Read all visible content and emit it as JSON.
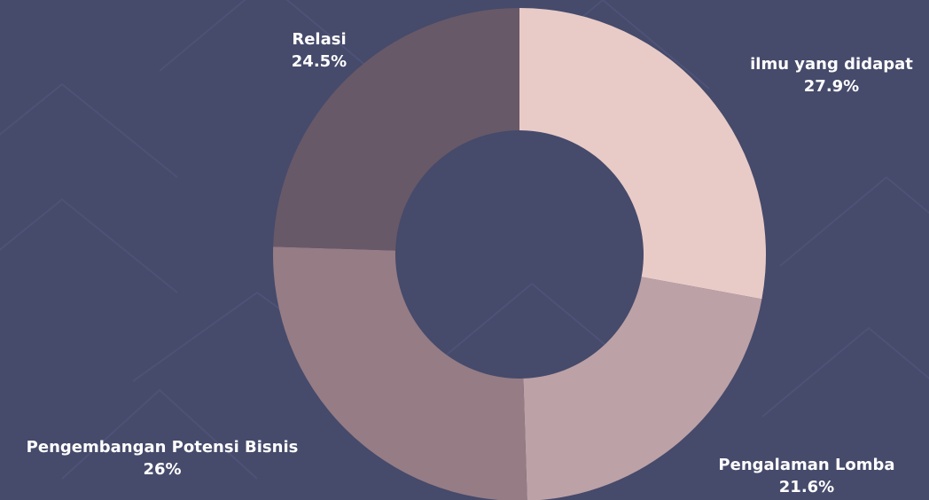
{
  "chart_data": {
    "type": "pie",
    "title": "",
    "slices": [
      {
        "label": "ilmu yang didapat",
        "value": 27.9,
        "display": "27.9%",
        "color": "#e8cbc7"
      },
      {
        "label": "Pengalaman Lomba",
        "value": 21.6,
        "display": "21.6%",
        "color": "#bca1a6"
      },
      {
        "label": "Pengembangan Potensi Bisnis",
        "value": 26,
        "display": "26%",
        "color": "#957c85"
      },
      {
        "label": "Relasi",
        "value": 24.5,
        "display": "24.5%",
        "color": "#685968"
      }
    ],
    "donut": true,
    "start_angle_deg": 0,
    "direction": "clockwise",
    "background_color": "#464a6b",
    "label_color": "#ffffff"
  }
}
